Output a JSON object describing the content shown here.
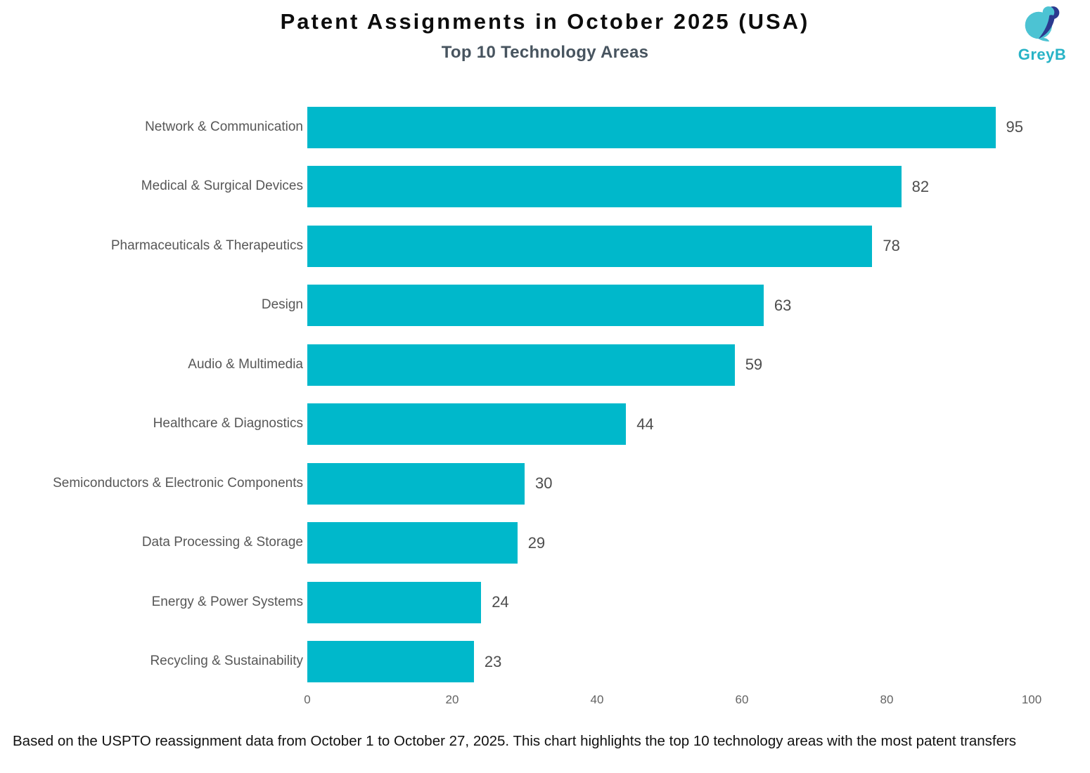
{
  "header": {
    "title": "Patent Assignments in October 2025 (USA)",
    "subtitle": "Top 10 Technology Areas"
  },
  "logo": {
    "brand": "GreyB",
    "teal": "#4cc3d3",
    "navy": "#2b3a8f",
    "wordmark_color": "#27b3c6"
  },
  "chart_data": {
    "type": "bar",
    "orientation": "horizontal",
    "title": "Patent Assignments in October 2025 (USA)",
    "subtitle": "Top 10 Technology Areas",
    "categories": [
      "Network & Communication",
      "Medical & Surgical Devices",
      "Pharmaceuticals & Therapeutics",
      "Design",
      "Audio & Multimedia",
      "Healthcare & Diagnostics",
      "Semiconductors & Electronic Components",
      "Data Processing & Storage",
      "Energy & Power Systems",
      "Recycling & Sustainability"
    ],
    "values": [
      95,
      82,
      78,
      63,
      59,
      44,
      30,
      29,
      24,
      23
    ],
    "xlabel": "",
    "ylabel": "",
    "xlim": [
      0,
      100
    ],
    "xticks": [
      0,
      20,
      40,
      60,
      80,
      100
    ],
    "bar_color": "#00b8cb",
    "grid": false,
    "value_labels": true,
    "legend": null
  },
  "footer": {
    "text": "Based on the USPTO reassignment data from October 1 to October 27, 2025. This chart highlights the top 10 technology areas with the most patent transfers"
  }
}
